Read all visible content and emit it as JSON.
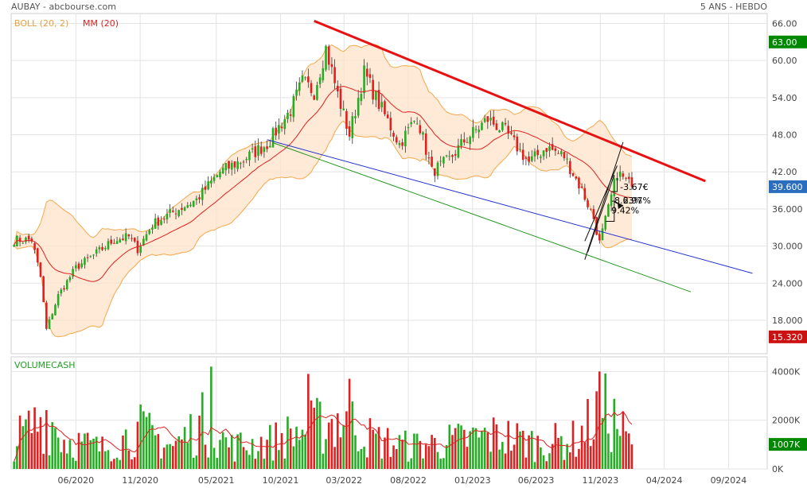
{
  "header": {
    "left": "AUBAY - abcbourse.com",
    "right": "5 ANS - HEBDO"
  },
  "legend": {
    "boll": "BOLL (20, 2)",
    "mm": "MM (20)",
    "volume": "VOLUMECASH"
  },
  "colors": {
    "up": "#22b022",
    "down": "#e02020",
    "band_fill": "#fde3c8",
    "band_line": "#f5a84a",
    "mm": "#e02020",
    "trend_red": "#e81010",
    "trend_blue": "#2030d0",
    "trend_green": "#229922",
    "badge_green": "#008800",
    "badge_blue": "#2a6ebd",
    "badge_red": "#cc1111"
  },
  "annotations": [
    "-3.67€",
    "-8.63%",
    "2.97%",
    "9.42%"
  ],
  "price_badges": [
    {
      "text": "63.00",
      "value": 63.0,
      "color": "green"
    },
    {
      "text": "39.600",
      "value": 39.6,
      "color": "blue"
    },
    {
      "text": "15.320",
      "value": 15.32,
      "color": "red"
    }
  ],
  "volume_badge": {
    "text": "1007K",
    "value": 1007
  },
  "chart_data": {
    "type": "candlestick",
    "price_axis": {
      "ticks": [
        "66.00",
        "60.00",
        "54.00",
        "48.00",
        "42.00",
        "36.000",
        "30.000",
        "24.000",
        "18.000"
      ],
      "ylim": [
        12.6,
        67.6
      ]
    },
    "volume_axis": {
      "ticks": [
        "4000K",
        "2000K",
        "0K"
      ],
      "ylim": [
        0,
        4600
      ]
    },
    "x_ticks": [
      "06/2020",
      "11/2020",
      "05/2021",
      "10/2021",
      "03/2022",
      "08/2022",
      "01/2023",
      "06/2023",
      "11/2023",
      "04/2024",
      "09/2024"
    ],
    "x_range": {
      "start": "2019-12-30",
      "end": "2024-12-02"
    },
    "close_anchors": [
      [
        "2020-01-06",
        31.0
      ],
      [
        "2020-02-17",
        31.0
      ],
      [
        "2020-03-09",
        25.0
      ],
      [
        "2020-03-23",
        16.5
      ],
      [
        "2020-04-20",
        22.0
      ],
      [
        "2020-06-01",
        26.5
      ],
      [
        "2020-07-13",
        28.5
      ],
      [
        "2020-08-31",
        31.0
      ],
      [
        "2020-10-05",
        31.5
      ],
      [
        "2020-10-26",
        29.5
      ],
      [
        "2020-11-30",
        33.5
      ],
      [
        "2021-01-18",
        35.5
      ],
      [
        "2021-03-15",
        37.5
      ],
      [
        "2021-05-10",
        42.0
      ],
      [
        "2021-07-05",
        44.0
      ],
      [
        "2021-08-30",
        46.5
      ],
      [
        "2021-10-25",
        52.0
      ],
      [
        "2021-11-22",
        56.5
      ],
      [
        "2021-12-20",
        55.0
      ],
      [
        "2022-01-17",
        62.0
      ],
      [
        "2022-02-14",
        54.5
      ],
      [
        "2022-03-14",
        48.0
      ],
      [
        "2022-04-18",
        58.0
      ],
      [
        "2022-05-23",
        53.0
      ],
      [
        "2022-07-11",
        46.5
      ],
      [
        "2022-08-22",
        51.0
      ],
      [
        "2022-09-26",
        42.0
      ],
      [
        "2022-11-07",
        44.0
      ],
      [
        "2022-12-12",
        47.0
      ],
      [
        "2023-02-06",
        50.5
      ],
      [
        "2023-03-20",
        48.5
      ],
      [
        "2023-05-15",
        43.5
      ],
      [
        "2023-06-26",
        46.0
      ],
      [
        "2023-08-07",
        44.5
      ],
      [
        "2023-09-18",
        39.0
      ],
      [
        "2023-10-16",
        34.5
      ],
      [
        "2023-10-30",
        30.5
      ],
      [
        "2023-11-20",
        36.0
      ],
      [
        "2023-12-11",
        42.0
      ],
      [
        "2024-01-01",
        40.5
      ],
      [
        "2024-01-15",
        39.6
      ]
    ],
    "volume_profile": [
      [
        "2020-01-06",
        1200
      ],
      [
        "2020-03-23",
        2400
      ],
      [
        "2020-05-04",
        1300
      ],
      [
        "2020-08-03",
        900
      ],
      [
        "2020-11-02",
        1700
      ],
      [
        "2021-01-18",
        1000
      ],
      [
        "2021-03-29",
        2000
      ],
      [
        "2021-06-07",
        1000
      ],
      [
        "2021-09-06",
        1200
      ],
      [
        "2021-11-22",
        1700
      ],
      [
        "2022-01-17",
        2000
      ],
      [
        "2022-02-28",
        2300
      ],
      [
        "2022-05-09",
        1300
      ],
      [
        "2022-08-01",
        1000
      ],
      [
        "2022-11-07",
        1200
      ],
      [
        "2023-03-06",
        1500
      ],
      [
        "2023-06-05",
        1100
      ],
      [
        "2023-09-04",
        1300
      ],
      [
        "2023-11-06",
        2600
      ],
      [
        "2023-12-11",
        2000
      ],
      [
        "2024-01-15",
        1007
      ]
    ],
    "volume_spikes": [
      [
        "2021-04-19",
        4200
      ],
      [
        "2021-12-06",
        3900
      ],
      [
        "2022-03-14",
        3700
      ],
      [
        "2023-10-30",
        4000
      ]
    ],
    "last_close": 39.6,
    "trendlines": [
      {
        "color": "trend_red",
        "from": [
          "2021-12-20",
          66.4
        ],
        "to": [
          "2024-07-08",
          40.5
        ]
      },
      {
        "color": "trend_blue",
        "from": [
          "2021-08-30",
          47.2
        ],
        "to": [
          "2024-10-28",
          25.6
        ]
      },
      {
        "color": "trend_green",
        "from": [
          "2021-09-13",
          46.7
        ],
        "to": [
          "2024-06-03",
          22.6
        ]
      }
    ],
    "fan_lines": [
      {
        "from": [
          "2023-09-25",
          27.8
        ],
        "to": [
          "2023-12-25",
          46.8
        ]
      },
      {
        "from": [
          "2023-09-25",
          30.8
        ],
        "to": [
          "2023-12-11",
          43.0
        ]
      },
      {
        "from": [
          "2023-10-02",
          29.0
        ],
        "to": [
          "2023-12-04",
          41.5
        ]
      }
    ],
    "fan_brackets": [
      {
        "from": [
          "2023-11-27",
          38.8
        ],
        "to": [
          "2023-12-11",
          41.0
        ]
      },
      {
        "from": [
          "2023-11-13",
          34.0
        ],
        "to": [
          "2023-12-04",
          37.5
        ]
      }
    ],
    "fan_arrow": {
      "from": [
        "2023-12-04",
        37.2
      ],
      "to": [
        "2023-12-25",
        36.5
      ]
    },
    "annotation_anchors": [
      {
        "date": "2023-12-18",
        "value": 39.1
      },
      {
        "date": "2023-11-27",
        "value": 36.9
      },
      {
        "date": "2023-12-25",
        "value": 36.9
      },
      {
        "date": "2023-11-27",
        "value": 35.3
      }
    ]
  }
}
